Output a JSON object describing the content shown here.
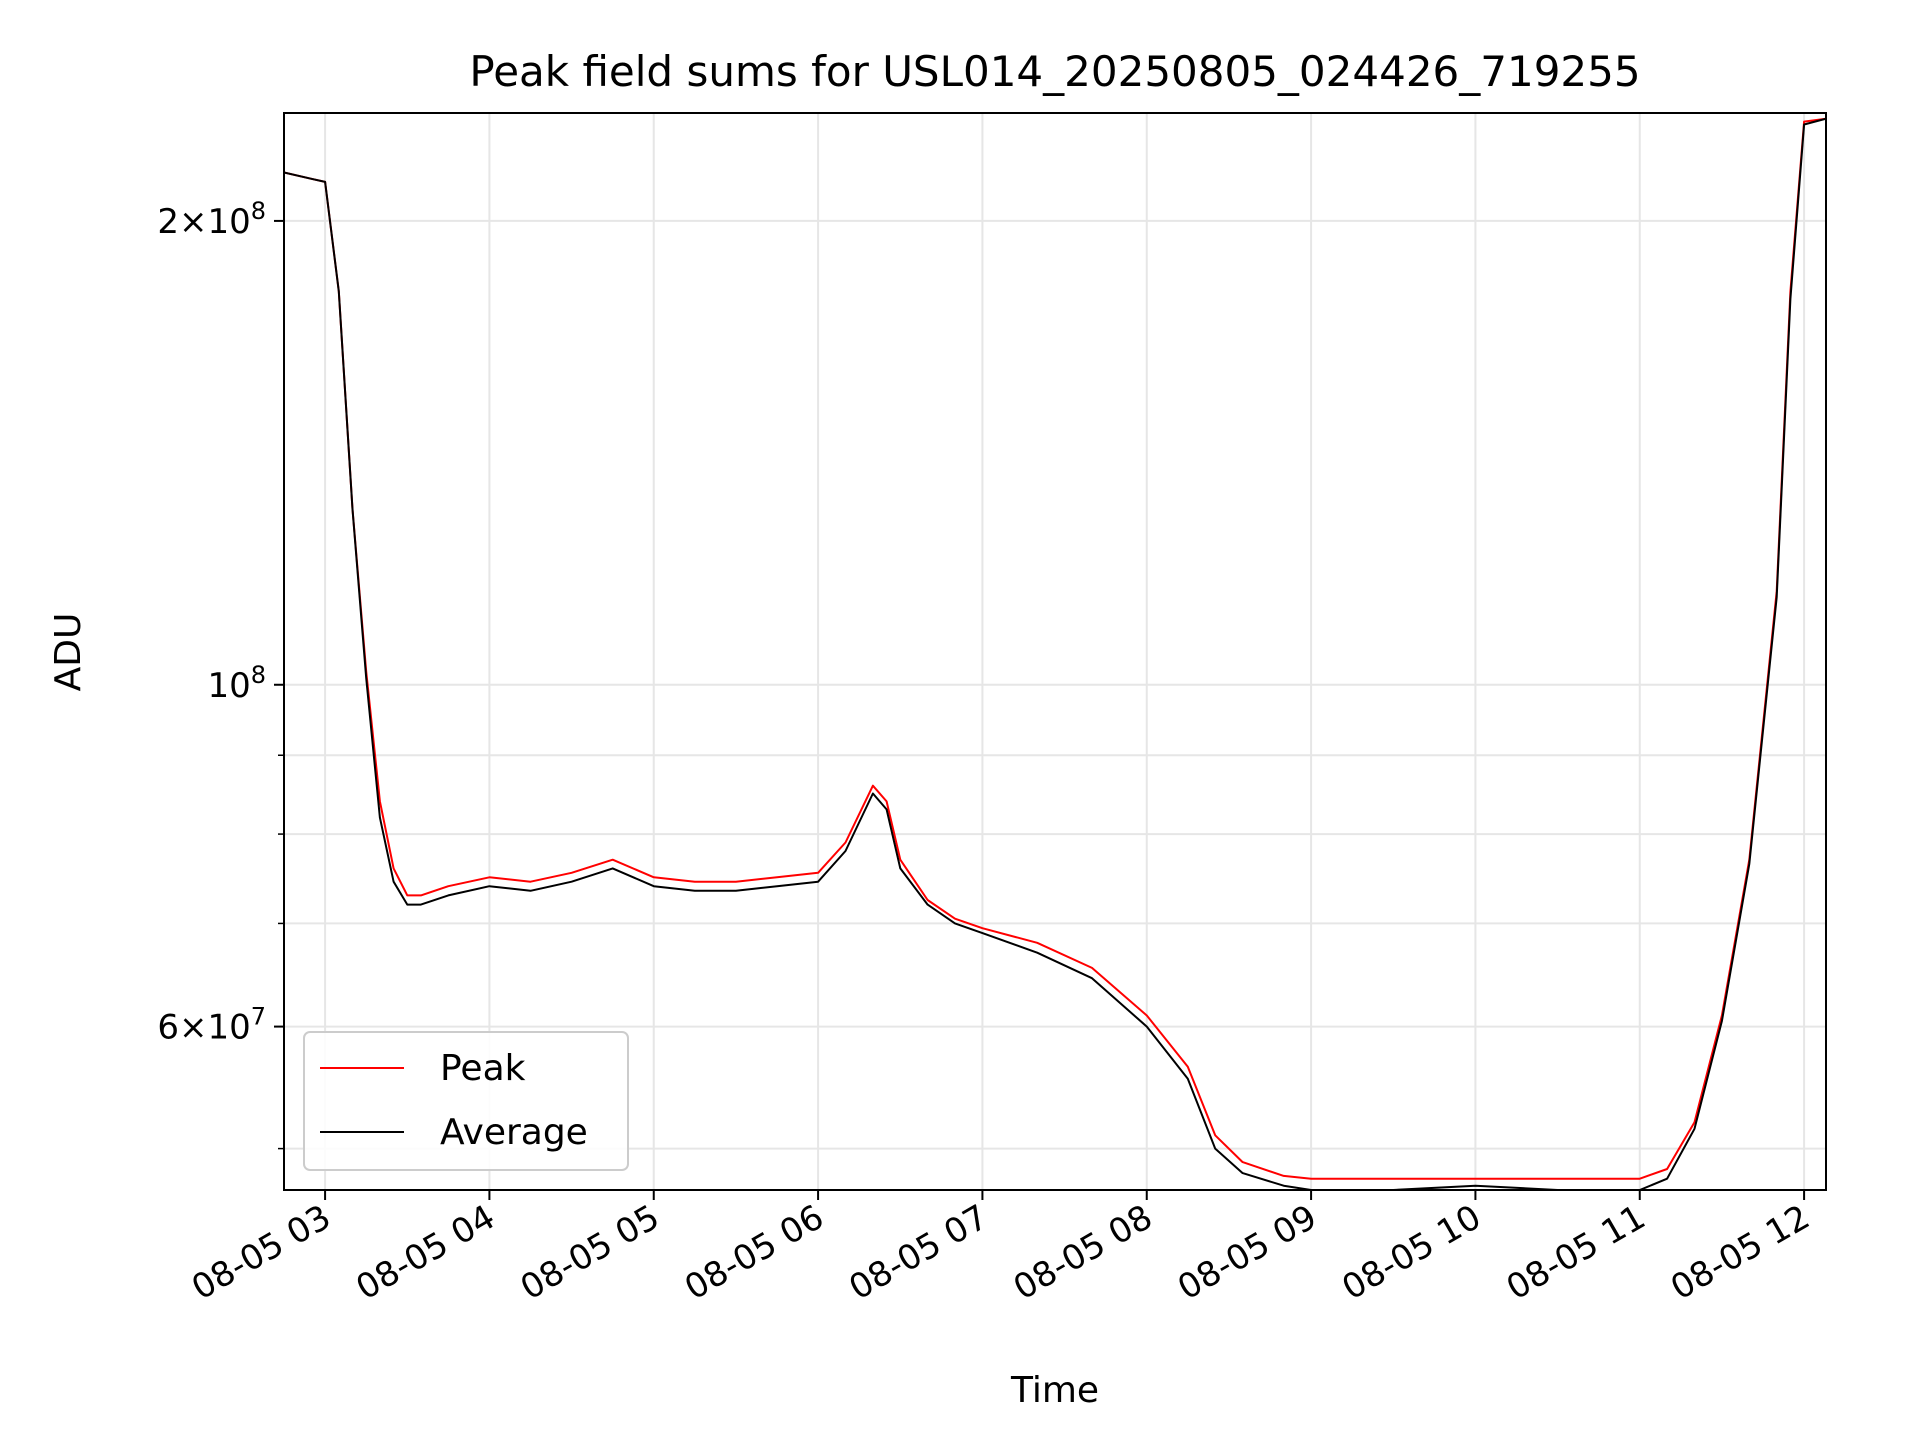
{
  "chart_data": {
    "type": "line",
    "title": "Peak field sums for USL014_20250805_024426_719255",
    "xlabel": "Time",
    "ylabel": "ADU",
    "yscale": "log",
    "xlim": [
      "08-05 02:45",
      "08-05 12:08"
    ],
    "ylim": [
      47000000,
      235000000
    ],
    "grid": true,
    "legend": {
      "position": "lower left",
      "entries": [
        "Peak",
        "Average"
      ]
    },
    "colors": {
      "Peak": "#ff0000",
      "Average": "#000000",
      "grid": "#e6e6e6"
    },
    "x_ticks": [
      "08-05 03",
      "08-05 04",
      "08-05 05",
      "08-05 06",
      "08-05 07",
      "08-05 08",
      "08-05 09",
      "08-05 10",
      "08-05 11",
      "08-05 12"
    ],
    "y_ticks_major": [
      {
        "label_base": "2",
        "label_exp": "8",
        "value": 200000000,
        "form": "mantissa"
      },
      {
        "label_base": "10",
        "label_exp": "8",
        "value": 100000000,
        "form": "power"
      },
      {
        "label_base": "6",
        "label_exp": "7",
        "value": 60000000,
        "form": "mantissa"
      }
    ],
    "y_ticks_minor": [
      50000000,
      70000000,
      80000000,
      90000000
    ],
    "series": [
      {
        "name": "Peak",
        "x": [
          "08-05 02:45",
          "08-05 02:55",
          "08-05 03:00",
          "08-05 03:05",
          "08-05 03:10",
          "08-05 03:15",
          "08-05 03:20",
          "08-05 03:25",
          "08-05 03:30",
          "08-05 03:35",
          "08-05 03:45",
          "08-05 04:00",
          "08-05 04:15",
          "08-05 04:30",
          "08-05 04:45",
          "08-05 05:00",
          "08-05 05:15",
          "08-05 05:30",
          "08-05 05:45",
          "08-05 06:00",
          "08-05 06:10",
          "08-05 06:20",
          "08-05 06:25",
          "08-05 06:30",
          "08-05 06:40",
          "08-05 06:50",
          "08-05 07:00",
          "08-05 07:20",
          "08-05 07:40",
          "08-05 08:00",
          "08-05 08:15",
          "08-05 08:25",
          "08-05 08:35",
          "08-05 08:50",
          "08-05 09:00",
          "08-05 09:30",
          "08-05 10:00",
          "08-05 10:30",
          "08-05 11:00",
          "08-05 11:10",
          "08-05 11:20",
          "08-05 11:30",
          "08-05 11:40",
          "08-05 11:50",
          "08-05 11:55",
          "08-05 12:00",
          "08-05 12:08"
        ],
        "y": [
          215000000,
          213000000,
          212000000,
          180000000,
          130000000,
          102000000,
          84000000,
          76000000,
          73000000,
          73000000,
          74000000,
          75000000,
          74500000,
          75500000,
          77000000,
          75000000,
          74500000,
          74500000,
          75000000,
          75500000,
          79000000,
          86000000,
          84000000,
          77000000,
          72500000,
          70500000,
          69500000,
          68000000,
          65500000,
          61000000,
          56500000,
          51000000,
          49000000,
          48000000,
          47800000,
          47800000,
          47800000,
          47800000,
          47800000,
          48500000,
          52000000,
          61000000,
          77000000,
          115000000,
          180000000,
          232000000,
          233000000
        ]
      },
      {
        "name": "Average",
        "x": [
          "08-05 02:45",
          "08-05 02:55",
          "08-05 03:00",
          "08-05 03:05",
          "08-05 03:10",
          "08-05 03:15",
          "08-05 03:20",
          "08-05 03:25",
          "08-05 03:30",
          "08-05 03:35",
          "08-05 03:45",
          "08-05 04:00",
          "08-05 04:15",
          "08-05 04:30",
          "08-05 04:45",
          "08-05 05:00",
          "08-05 05:15",
          "08-05 05:30",
          "08-05 05:45",
          "08-05 06:00",
          "08-05 06:10",
          "08-05 06:20",
          "08-05 06:25",
          "08-05 06:30",
          "08-05 06:40",
          "08-05 06:50",
          "08-05 07:00",
          "08-05 07:20",
          "08-05 07:40",
          "08-05 08:00",
          "08-05 08:15",
          "08-05 08:25",
          "08-05 08:35",
          "08-05 08:50",
          "08-05 09:00",
          "08-05 09:30",
          "08-05 10:00",
          "08-05 10:30",
          "08-05 11:00",
          "08-05 11:10",
          "08-05 11:20",
          "08-05 11:30",
          "08-05 11:40",
          "08-05 11:50",
          "08-05 11:55",
          "08-05 12:00",
          "08-05 12:08"
        ],
        "y": [
          215000000,
          213000000,
          212000000,
          180000000,
          130000000,
          101000000,
          82000000,
          74500000,
          72000000,
          72000000,
          73000000,
          74000000,
          73500000,
          74500000,
          76000000,
          74000000,
          73500000,
          73500000,
          74000000,
          74500000,
          78000000,
          85000000,
          83000000,
          76000000,
          72000000,
          70000000,
          69000000,
          67000000,
          64500000,
          60000000,
          55500000,
          50000000,
          48200000,
          47300000,
          47000000,
          47000000,
          47300000,
          47000000,
          47000000,
          47800000,
          51500000,
          60500000,
          76500000,
          114000000,
          178000000,
          231000000,
          233000000
        ]
      }
    ]
  }
}
